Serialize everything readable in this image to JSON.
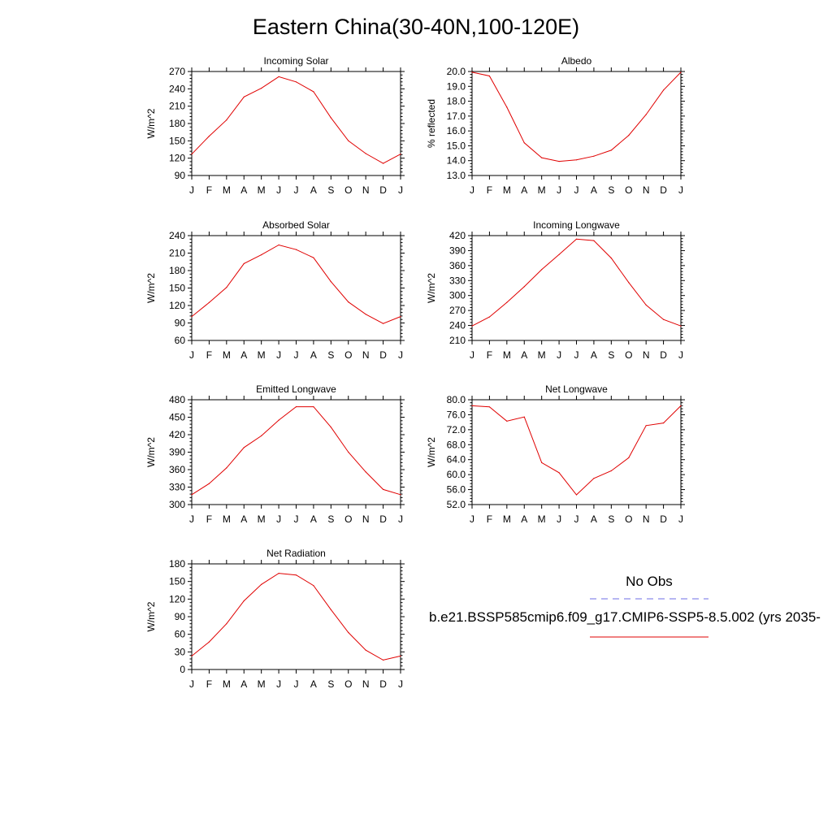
{
  "title": "Eastern China(30-40N,100-120E)",
  "months": [
    "J",
    "F",
    "M",
    "A",
    "M",
    "J",
    "J",
    "A",
    "S",
    "O",
    "N",
    "D",
    "J"
  ],
  "legend": {
    "obs_label": "No Obs",
    "obs_color": "#6e6ee6",
    "model_label": "b.e21.BSSP585cmip6.f09_g17.CMIP6-SSP5-8.5.002 (yrs 2035-",
    "model_color": "#e00000"
  },
  "chart_data": [
    {
      "type": "line",
      "title": "Incoming Solar",
      "ylabel": "W/m^2",
      "ylim": [
        90,
        270
      ],
      "yticks": [
        "90",
        "120",
        "150",
        "180",
        "210",
        "240",
        "270"
      ],
      "x": [
        "J",
        "F",
        "M",
        "A",
        "M",
        "J",
        "J",
        "A",
        "S",
        "O",
        "N",
        "D",
        "J"
      ],
      "series": [
        {
          "values": [
            127,
            158,
            186,
            226,
            241,
            261,
            252,
            235,
            190,
            150,
            128,
            111,
            127
          ]
        }
      ]
    },
    {
      "type": "line",
      "title": "Albedo",
      "ylabel": "% reflected",
      "ylim": [
        13.0,
        20.0
      ],
      "yticks": [
        "13.0",
        "14.0",
        "15.0",
        "16.0",
        "17.0",
        "18.0",
        "19.0",
        "20.0"
      ],
      "x": [
        "J",
        "F",
        "M",
        "A",
        "M",
        "J",
        "J",
        "A",
        "S",
        "O",
        "N",
        "D",
        "J"
      ],
      "series": [
        {
          "values": [
            19.95,
            19.7,
            17.6,
            15.2,
            14.2,
            13.95,
            14.05,
            14.3,
            14.7,
            15.7,
            17.1,
            18.75,
            19.95
          ]
        }
      ]
    },
    {
      "type": "line",
      "title": "Absorbed Solar",
      "ylabel": "W/m^2",
      "ylim": [
        60,
        240
      ],
      "yticks": [
        "60",
        "90",
        "120",
        "150",
        "180",
        "210",
        "240"
      ],
      "x": [
        "J",
        "F",
        "M",
        "A",
        "M",
        "J",
        "J",
        "A",
        "S",
        "O",
        "N",
        "D",
        "J"
      ],
      "series": [
        {
          "values": [
            101,
            125,
            151,
            192,
            207,
            224,
            216,
            202,
            161,
            126,
            105,
            89,
            101
          ]
        }
      ]
    },
    {
      "type": "line",
      "title": "Incoming Longwave",
      "ylabel": "W/m^2",
      "ylim": [
        210,
        420
      ],
      "yticks": [
        "210",
        "240",
        "270",
        "300",
        "330",
        "360",
        "390",
        "420"
      ],
      "x": [
        "J",
        "F",
        "M",
        "A",
        "M",
        "J",
        "J",
        "A",
        "S",
        "O",
        "N",
        "D",
        "J"
      ],
      "series": [
        {
          "values": [
            239,
            257,
            286,
            318,
            352,
            382,
            413,
            410,
            375,
            326,
            281,
            252,
            239
          ]
        }
      ]
    },
    {
      "type": "line",
      "title": "Emitted Longwave",
      "ylabel": "W/m^2",
      "ylim": [
        300,
        480
      ],
      "yticks": [
        "300",
        "330",
        "360",
        "390",
        "420",
        "450",
        "480"
      ],
      "x": [
        "J",
        "F",
        "M",
        "A",
        "M",
        "J",
        "J",
        "A",
        "S",
        "O",
        "N",
        "D",
        "J"
      ],
      "series": [
        {
          "values": [
            317,
            336,
            363,
            398,
            418,
            445,
            468,
            468,
            433,
            390,
            356,
            326,
            317
          ]
        }
      ]
    },
    {
      "type": "line",
      "title": "Net Longwave",
      "ylabel": "W/m^2",
      "ylim": [
        52.0,
        80.0
      ],
      "yticks": [
        "52.0",
        "56.0",
        "60.0",
        "64.0",
        "68.0",
        "72.0",
        "76.0",
        "80.0"
      ],
      "x": [
        "J",
        "F",
        "M",
        "A",
        "M",
        "J",
        "J",
        "A",
        "S",
        "O",
        "N",
        "D",
        "J"
      ],
      "series": [
        {
          "values": [
            78.4,
            78.1,
            74.3,
            75.4,
            63.2,
            60.5,
            54.6,
            59.0,
            61.0,
            64.5,
            73.1,
            73.8,
            78.4
          ]
        }
      ]
    },
    {
      "type": "line",
      "title": "Net Radiation",
      "ylabel": "W/m^2",
      "ylim": [
        0,
        180
      ],
      "yticks": [
        "0",
        "30",
        "60",
        "90",
        "120",
        "150",
        "180"
      ],
      "x": [
        "J",
        "F",
        "M",
        "A",
        "M",
        "J",
        "J",
        "A",
        "S",
        "O",
        "N",
        "D",
        "J"
      ],
      "series": [
        {
          "values": [
            23,
            47,
            78,
            117,
            145,
            164,
            161,
            143,
            102,
            63,
            33,
            16,
            23
          ]
        }
      ]
    }
  ]
}
